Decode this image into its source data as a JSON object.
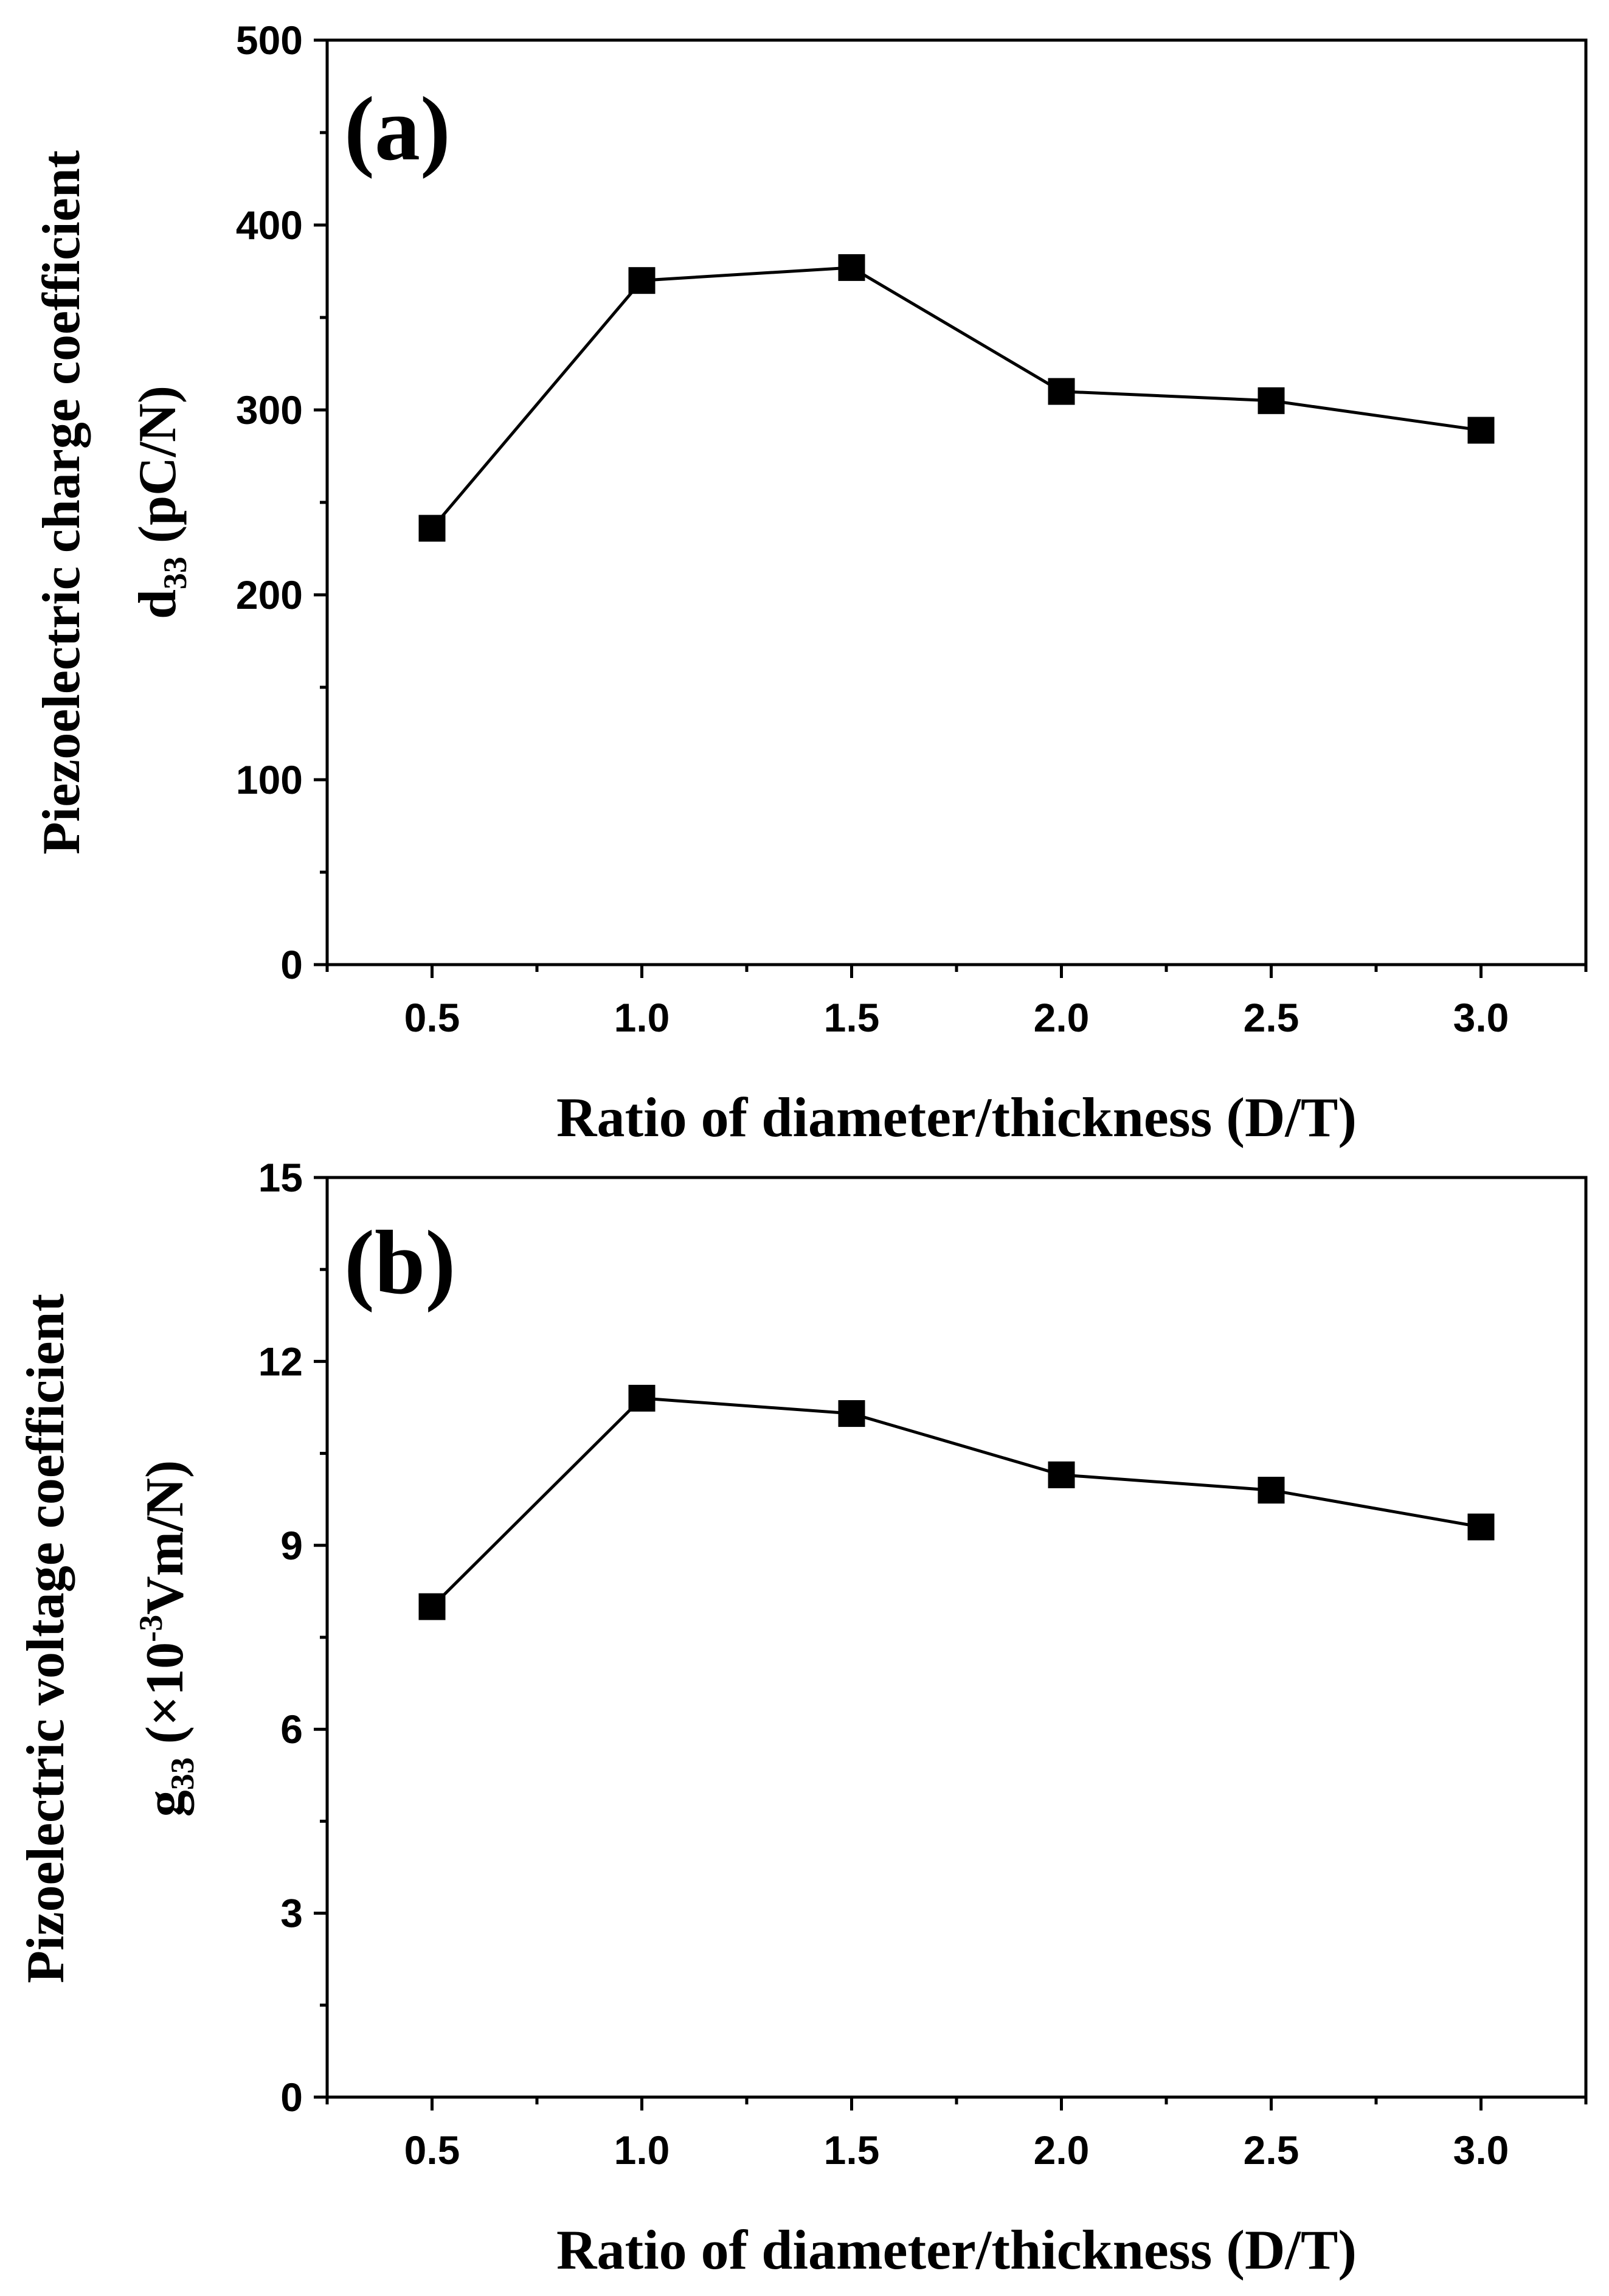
{
  "chart_data": [
    {
      "type": "line",
      "panel_label": "(a)",
      "x": [
        0.5,
        1.0,
        1.5,
        2.0,
        2.5,
        3.0
      ],
      "x_tick_labels": [
        "0.5",
        "1.0",
        "1.5",
        "2.0",
        "2.5",
        "3.0"
      ],
      "xlim": [
        0.25,
        3.25
      ],
      "y_ticks": [
        0,
        100,
        200,
        300,
        400,
        500
      ],
      "y_tick_labels": [
        "0",
        "100",
        "200",
        "300",
        "400",
        "500"
      ],
      "ylim": [
        0,
        500
      ],
      "xlabel": "Ratio of diameter/thickness (D/T)",
      "ylabel_line1": "Piezoelectric charge coefficient",
      "ylabel_symbol": "d",
      "ylabel_subscript": "33",
      "ylabel_unit": " (pC/N)",
      "series": [
        {
          "name": "d33",
          "marker": "square",
          "color": "#000000",
          "values": [
            236,
            370,
            377,
            310,
            305,
            289
          ]
        }
      ]
    },
    {
      "type": "line",
      "panel_label": "(b)",
      "x": [
        0.5,
        1.0,
        1.5,
        2.0,
        2.5,
        3.0
      ],
      "x_tick_labels": [
        "0.5",
        "1.0",
        "1.5",
        "2.0",
        "2.5",
        "3.0"
      ],
      "xlim": [
        0.25,
        3.25
      ],
      "y_ticks": [
        0,
        3,
        6,
        9,
        12,
        15
      ],
      "y_tick_labels": [
        "0",
        "3",
        "6",
        "9",
        "12",
        "15"
      ],
      "ylim": [
        0,
        15
      ],
      "xlabel": "Ratio of diameter/thickness (D/T)",
      "ylabel_line1": "Pizoelectric voltage coefficient",
      "ylabel_symbol": "g",
      "ylabel_subscript": "33",
      "ylabel_unit_pre": " (×10",
      "ylabel_superscript": "-3",
      "ylabel_unit_post": "Vm/N)",
      "series": [
        {
          "name": "g33",
          "marker": "square",
          "color": "#000000",
          "values": [
            8.0,
            11.4,
            11.15,
            10.15,
            9.9,
            9.3
          ]
        }
      ]
    }
  ]
}
